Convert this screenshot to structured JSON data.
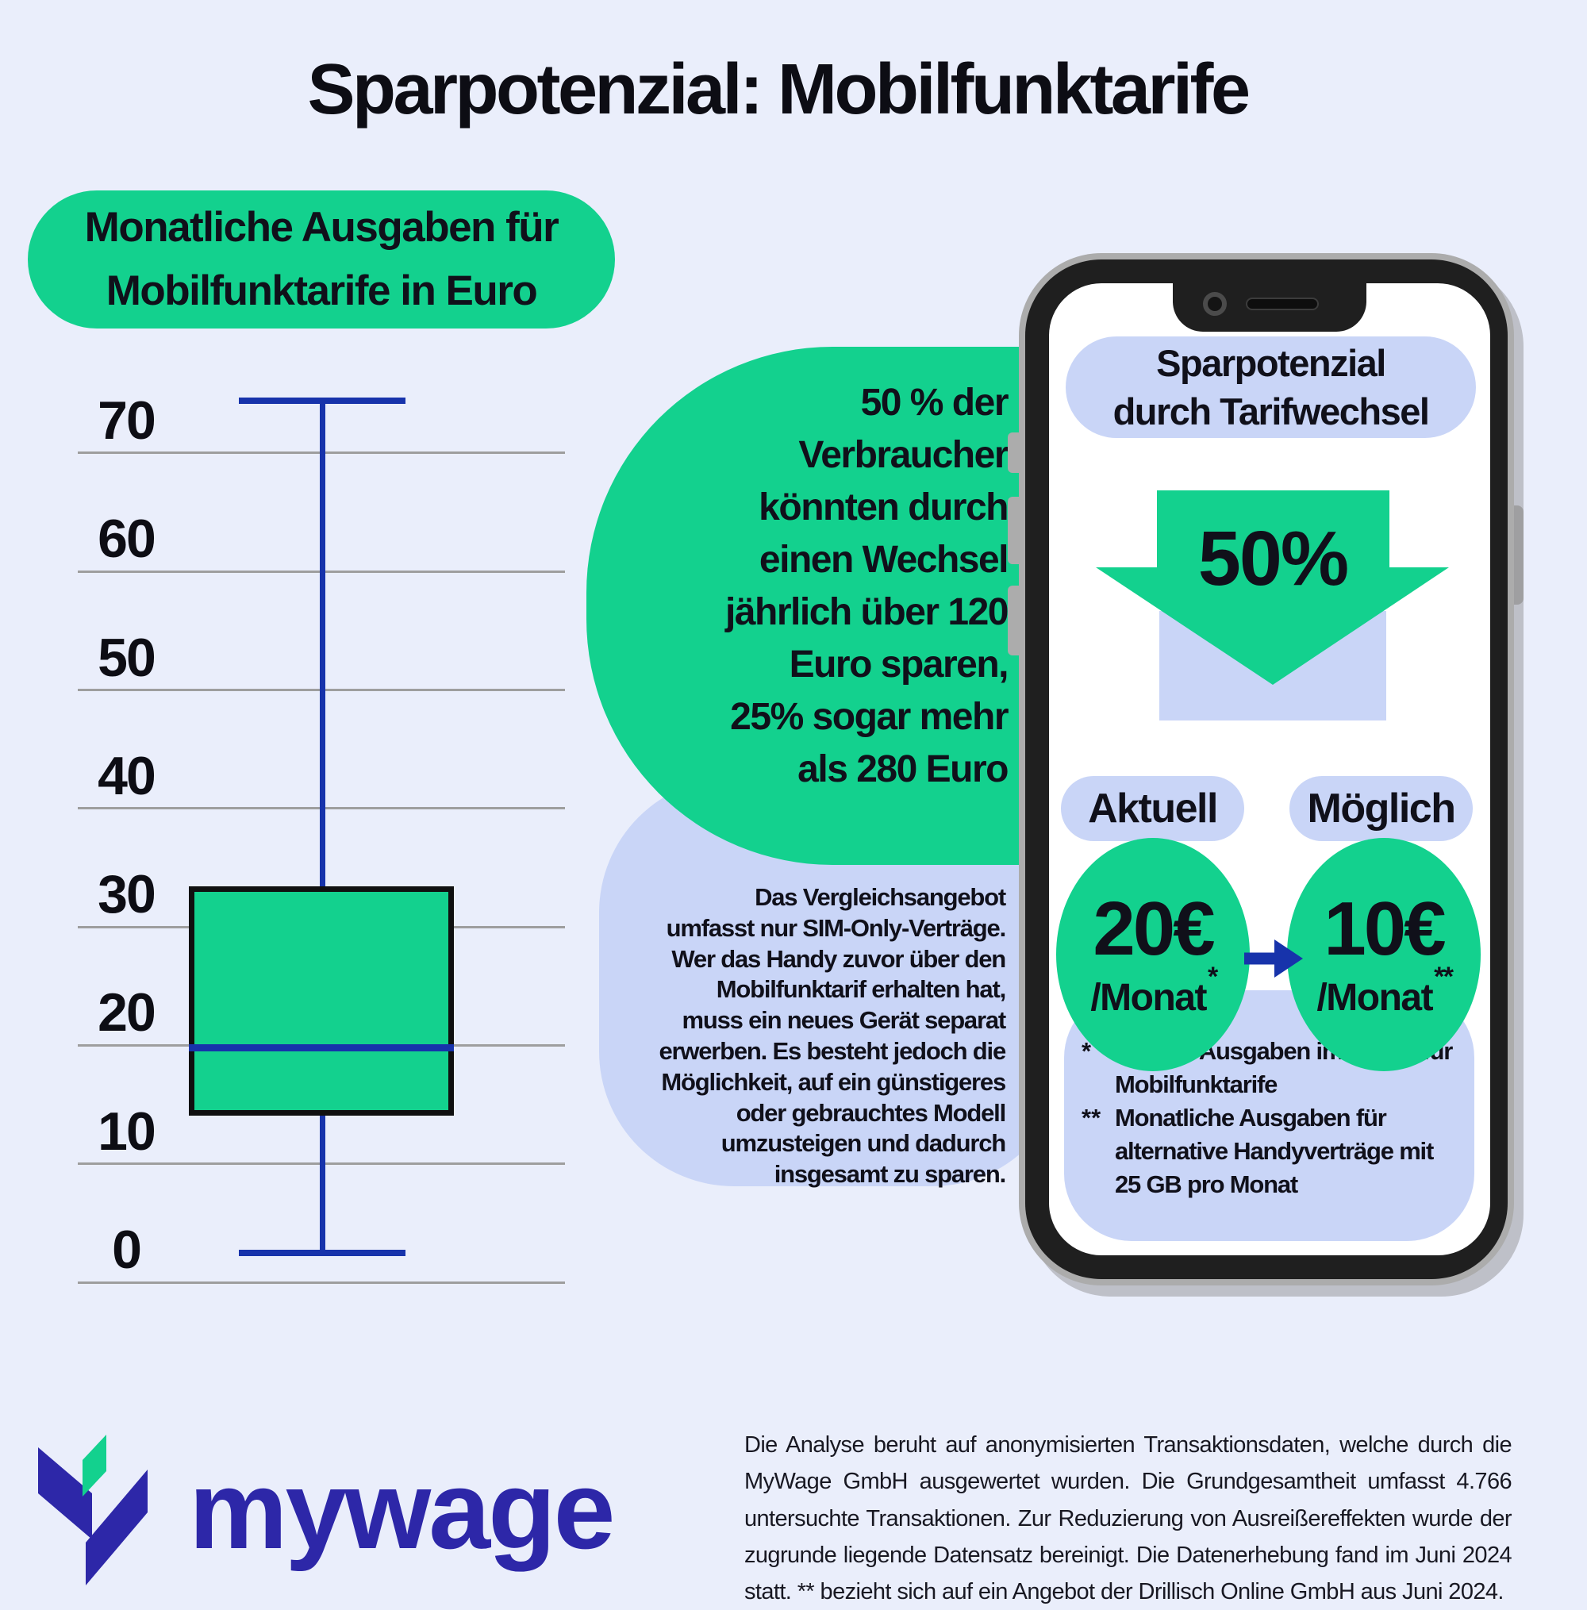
{
  "title": "Sparpotenzial: Mobilfunktarife",
  "colors": {
    "background": "#eaeefb",
    "green": "#13d18e",
    "navy": "#1733ab",
    "light_blue": "#c9d5f7",
    "ink": "#10101a",
    "logo_indigo": "#2d27a8",
    "gridline": "#9e9e9e",
    "phone_frame": "#1f1f1f",
    "phone_ring": "#acacac",
    "screen_white": "#ffffff"
  },
  "chart": {
    "badge_title": "Monatliche Ausgaben für\nMobilfunktarife in Euro"
  },
  "chart_data": {
    "type": "boxplot",
    "title": "Monatliche Ausgaben für Mobilfunktarife in Euro",
    "xlabel": "",
    "ylabel": "Euro",
    "ylim": [
      0,
      75
    ],
    "yticks": [
      70,
      60,
      50,
      40,
      30,
      20,
      10,
      0
    ],
    "grid": true,
    "series": [
      {
        "name": "Monatliche Ausgaben für Mobilfunktarife in Euro",
        "min": 2.5,
        "q1": 14.3,
        "median": 19.8,
        "q3": 33.2,
        "max": 74.4
      }
    ]
  },
  "green_callout": {
    "text": "50 % der\nVerbraucher\nkönnten durch\neinen Wechsel\njährlich über 120\nEuro sparen,\n25% sogar mehr\nals 280 Euro"
  },
  "blue_callout": {
    "text": "Das Vergleichsangebot\numfasst nur SIM-Only-Verträge.\nWer das Handy zuvor über den\nMobilfunktarif erhalten hat,\nmuss ein neues Gerät separat\nerwerben. Es besteht jedoch die\nMöglichkeit, auf ein günstigeres\noder gebrauchtes Modell\numzusteigen und dadurch\ninsgesamt zu sparen."
  },
  "phone": {
    "header": "Sparpotenzial\ndurch Tarifwechsel",
    "savings_value": "50%",
    "current_label": "Aktuell",
    "possible_label": "Möglich",
    "current_price": "20€",
    "current_unit": "/Monat",
    "current_marker": "*",
    "possible_price": "10€",
    "possible_unit": "/Monat",
    "possible_marker": "**",
    "footnotes": [
      {
        "marker": "*",
        "text": "Median Ausgaben im Monat für\nMobilfunktarife"
      },
      {
        "marker": "**",
        "text": "Monatliche Ausgaben für\nalternative Handyverträge mit\n25 GB pro Monat"
      }
    ]
  },
  "logo": {
    "wordmark": "mywage"
  },
  "footer": {
    "text": "Die Analyse beruht auf anonymisierten Transaktionsdaten, welche durch die MyWage GmbH ausgewertet wurden. Die Grundgesamtheit umfasst 4.766 untersuchte Transaktionen. Zur Reduzierung von Ausreißereffekten wurde der zugrunde liegende Datensatz bereinigt. Die Datenerhebung fand im Juni 2024 statt. ** bezieht sich auf ein Angebot der Drillisch Online GmbH aus Juni 2024."
  }
}
